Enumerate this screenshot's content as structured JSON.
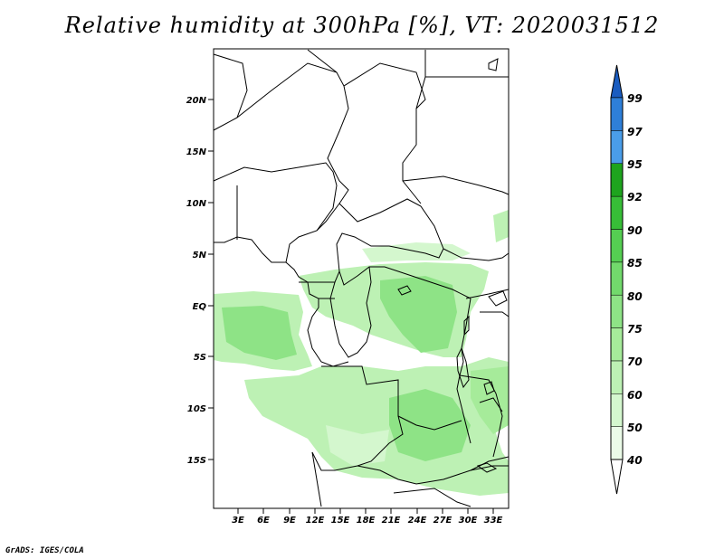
{
  "title": "Relative humidity at 300hPa [%], VT: 2020031512",
  "credit": "GrADS: IGES/COLA",
  "map": {
    "lat_labels": [
      "20N",
      "15N",
      "10N",
      "5N",
      "EQ",
      "5S",
      "10S",
      "15S"
    ],
    "lon_labels": [
      "3E",
      "6E",
      "9E",
      "12E",
      "15E",
      "18E",
      "21E",
      "24E",
      "27E",
      "30E",
      "33E"
    ]
  },
  "colorbar": {
    "levels": [
      "40",
      "50",
      "60",
      "70",
      "75",
      "80",
      "85",
      "90",
      "92",
      "95",
      "97",
      "99"
    ],
    "colors": [
      "#ebfbe8",
      "#d4f7ce",
      "#bdf1b4",
      "#a6eb9a",
      "#8ee386",
      "#72d96c",
      "#55ce52",
      "#37be37",
      "#1ea41e",
      "#4a9de9",
      "#2e7fd8",
      "#1a5cc0"
    ]
  }
}
